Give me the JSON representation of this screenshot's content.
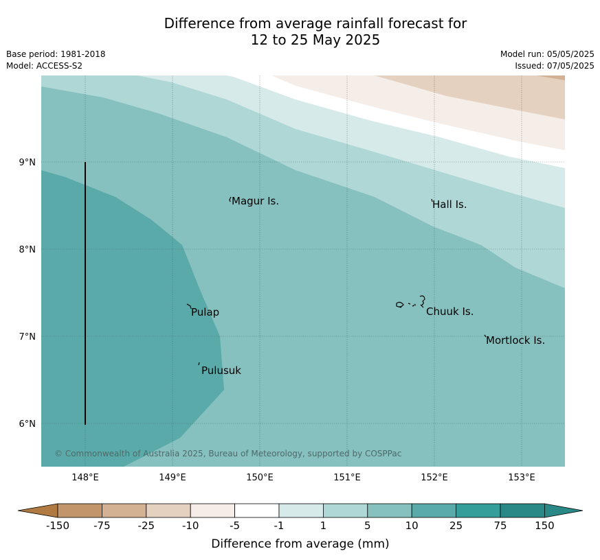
{
  "title": {
    "line1": "Difference from average rainfall forecast for",
    "line2": "12 to 25 May 2025"
  },
  "info": {
    "base_period": "Base period: 1981-2018",
    "model": "Model: ACCESS-S2",
    "model_run": "Model run: 05/05/2025",
    "issued": "Issued: 07/05/2025"
  },
  "map": {
    "lon_range": [
      147.5,
      153.5
    ],
    "lat_range": [
      5.5,
      10.0
    ],
    "x_ticks": [
      "148°E",
      "149°E",
      "150°E",
      "151°E",
      "152°E",
      "153°E"
    ],
    "y_ticks": [
      "9°N",
      "8°N",
      "7°N",
      "6°N"
    ],
    "places": [
      "Magur Is.",
      "Hall Is.",
      "Pulap",
      "Chuuk Is.",
      "Mortlock Is.",
      "Pulusuk"
    ],
    "copyright": "© Commonwealth of Australia 2025, Bureau of Meteorology, supported by COSPPac"
  },
  "colorbar": {
    "tick_labels": [
      "-150",
      "-75",
      "-25",
      "-10",
      "-5",
      "-1",
      "1",
      "5",
      "10",
      "25",
      "75",
      "150"
    ],
    "colors": [
      "#b07a42",
      "#c2956a",
      "#d3b294",
      "#e4d1c0",
      "#f5ede8",
      "#ffffff",
      "#d6eaea",
      "#aed7d6",
      "#86c0bf",
      "#5aaaa9",
      "#359d9a",
      "#2a8987"
    ],
    "label": "Difference from average (mm)"
  }
}
